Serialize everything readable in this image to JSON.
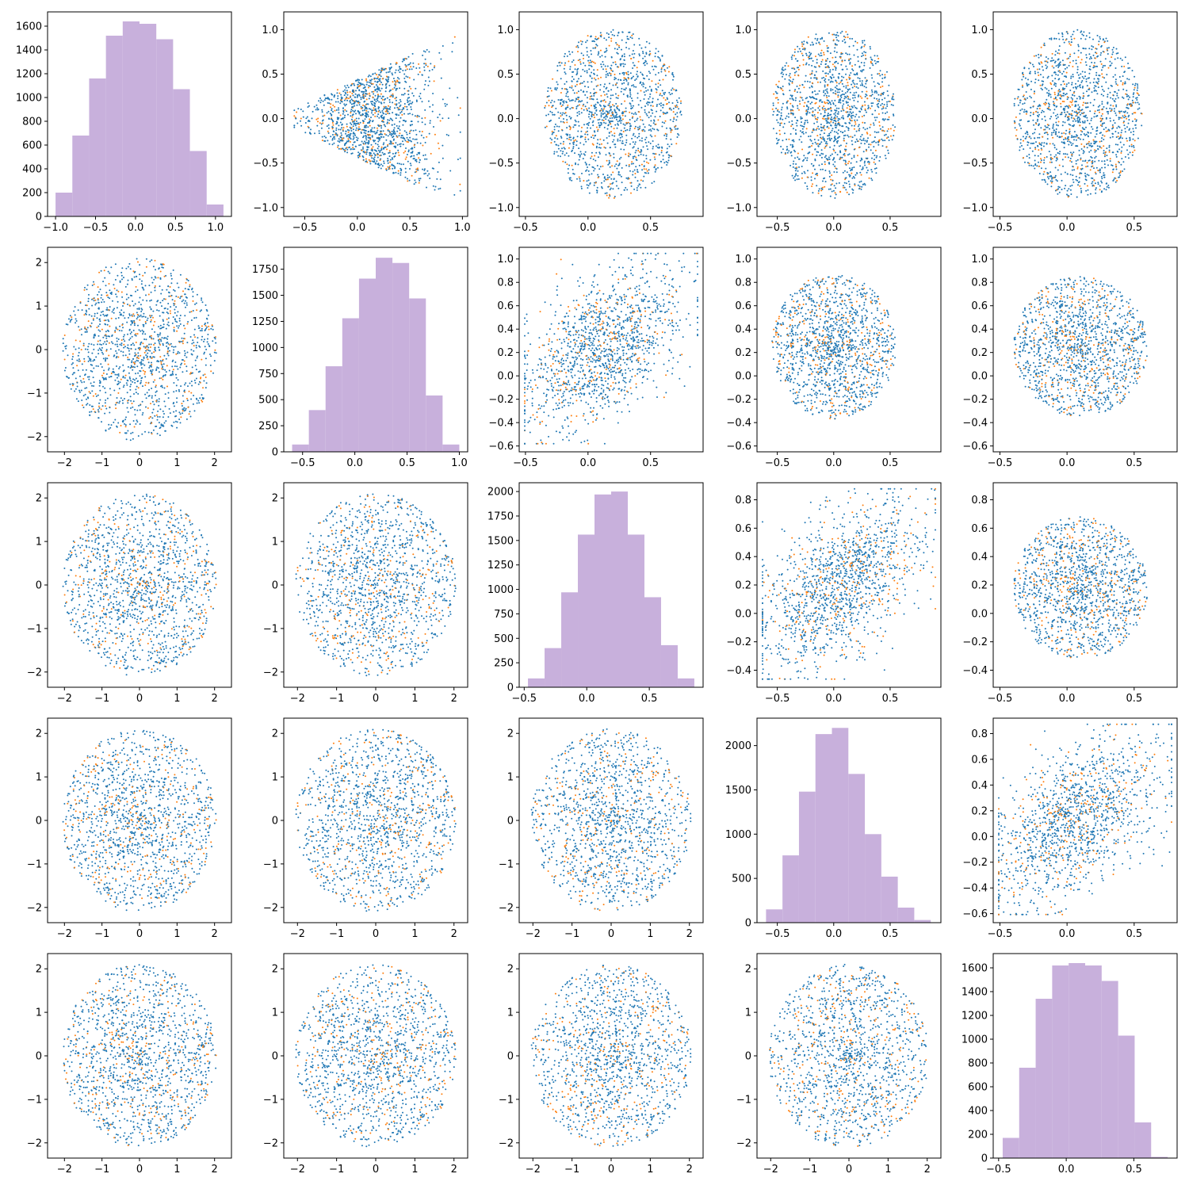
{
  "figure": {
    "rows": 5,
    "cols": 5,
    "points_per_panel": 1400,
    "colors": {
      "scatter_primary": "#1f77b4",
      "scatter_secondary": "#ff7f0e",
      "histogram": "#c8b0dc"
    }
  },
  "chart_data": [
    {
      "row": 0,
      "col": 0,
      "type": "bar",
      "subtype": "histogram",
      "bin_edges": [
        -1.0,
        -0.79,
        -0.58,
        -0.37,
        -0.16,
        0.05,
        0.26,
        0.47,
        0.68,
        0.89,
        1.1
      ],
      "values": [
        200,
        680,
        1160,
        1520,
        1640,
        1620,
        1490,
        1070,
        550,
        100
      ],
      "xlim": [
        -1.1,
        1.2
      ],
      "ylim": [
        0,
        1720
      ],
      "xticks": [
        -1.0,
        -0.5,
        0.0,
        0.5,
        1.0
      ],
      "xtick_labels": [
        "−1.0",
        "−0.5",
        "0.0",
        "0.5",
        "1.0"
      ],
      "yticks": [
        0,
        200,
        400,
        600,
        800,
        1000,
        1200,
        1400,
        1600
      ],
      "ytick_labels": [
        "0",
        "200",
        "400",
        "600",
        "800",
        "1000",
        "1200",
        "1400",
        "1600"
      ]
    },
    {
      "row": 0,
      "col": 1,
      "type": "scatter",
      "shape": "fan",
      "xlim": [
        -0.7,
        1.05
      ],
      "ylim": [
        -1.1,
        1.2
      ],
      "xticks": [
        -0.5,
        0.0,
        0.5,
        1.0
      ],
      "xtick_labels": [
        "−0.5",
        "0.0",
        "0.5",
        "1.0"
      ],
      "yticks": [
        -1.0,
        -0.5,
        0.0,
        0.5,
        1.0
      ],
      "ytick_labels": [
        "−1.0",
        "−0.5",
        "0.0",
        "0.5",
        "1.0"
      ]
    },
    {
      "row": 0,
      "col": 2,
      "type": "scatter",
      "shape": "ellipse",
      "cx": 0.2,
      "cy": 0.05,
      "rx": 0.55,
      "ry": 0.95,
      "xlim": [
        -0.55,
        0.92
      ],
      "ylim": [
        -1.1,
        1.2
      ],
      "xticks": [
        -0.5,
        0.0,
        0.5
      ],
      "xtick_labels": [
        "−0.5",
        "0.0",
        "0.5"
      ],
      "yticks": [
        -1.0,
        -0.5,
        0.0,
        0.5,
        1.0
      ],
      "ytick_labels": [
        "−1.0",
        "−0.5",
        "0.0",
        "0.5",
        "1.0"
      ]
    },
    {
      "row": 0,
      "col": 3,
      "type": "scatter",
      "shape": "ellipse",
      "cx": 0.0,
      "cy": 0.05,
      "rx": 0.55,
      "ry": 0.95,
      "xlim": [
        -0.68,
        0.95
      ],
      "ylim": [
        -1.1,
        1.2
      ],
      "xticks": [
        -0.5,
        0.0,
        0.5
      ],
      "xtick_labels": [
        "−0.5",
        "0.0",
        "0.5"
      ],
      "yticks": [
        -1.0,
        -0.5,
        0.0,
        0.5,
        1.0
      ],
      "ytick_labels": [
        "−1.0",
        "−0.5",
        "0.0",
        "0.5",
        "1.0"
      ]
    },
    {
      "row": 0,
      "col": 4,
      "type": "scatter",
      "shape": "ellipse",
      "cx": 0.08,
      "cy": 0.05,
      "rx": 0.48,
      "ry": 0.95,
      "xlim": [
        -0.55,
        0.82
      ],
      "ylim": [
        -1.1,
        1.2
      ],
      "xticks": [
        -0.5,
        0.0,
        0.5
      ],
      "xtick_labels": [
        "−0.5",
        "0.0",
        "0.5"
      ],
      "yticks": [
        -1.0,
        -0.5,
        0.0,
        0.5,
        1.0
      ],
      "ytick_labels": [
        "−1.0",
        "−0.5",
        "0.0",
        "0.5",
        "1.0"
      ]
    },
    {
      "row": 1,
      "col": 0,
      "type": "scatter",
      "shape": "disc",
      "cx": 0.0,
      "cy": 0.0,
      "rx": 2.05,
      "ry": 2.1,
      "xlim": [
        -2.45,
        2.45
      ],
      "ylim": [
        -2.35,
        2.35
      ],
      "xticks": [
        -2,
        -1,
        0,
        1,
        2
      ],
      "xtick_labels": [
        "−2",
        "−1",
        "0",
        "1",
        "2"
      ],
      "yticks": [
        -2,
        -1,
        0,
        1,
        2
      ],
      "ytick_labels": [
        "−2",
        "−1",
        "0",
        "1",
        "2"
      ]
    },
    {
      "row": 1,
      "col": 1,
      "type": "bar",
      "subtype": "histogram",
      "bin_edges": [
        -0.6,
        -0.44,
        -0.28,
        -0.12,
        0.04,
        0.2,
        0.36,
        0.52,
        0.68,
        0.84,
        1.0
      ],
      "values": [
        70,
        400,
        820,
        1280,
        1660,
        1860,
        1810,
        1470,
        540,
        70
      ],
      "xlim": [
        -0.68,
        1.08
      ],
      "ylim": [
        0,
        1960
      ],
      "xticks": [
        -0.5,
        0.0,
        0.5,
        1.0
      ],
      "xtick_labels": [
        "−0.5",
        "0.0",
        "0.5",
        "1.0"
      ],
      "yticks": [
        0,
        250,
        500,
        750,
        1000,
        1250,
        1500,
        1750
      ],
      "ytick_labels": [
        "0",
        "250",
        "500",
        "750",
        "1000",
        "1250",
        "1500",
        "1750"
      ]
    },
    {
      "row": 1,
      "col": 2,
      "type": "scatter",
      "shape": "tilted",
      "xlim": [
        -0.55,
        0.92
      ],
      "ylim": [
        -0.65,
        1.1
      ],
      "xticks": [
        -0.5,
        0.0,
        0.5
      ],
      "xtick_labels": [
        "−0.5",
        "0.0",
        "0.5"
      ],
      "yticks": [
        -0.6,
        -0.4,
        -0.2,
        0.0,
        0.2,
        0.4,
        0.6,
        0.8,
        1.0
      ],
      "ytick_labels": [
        "−0.6",
        "−0.4",
        "−0.2",
        "0.0",
        "0.2",
        "0.4",
        "0.6",
        "0.8",
        "1.0"
      ]
    },
    {
      "row": 1,
      "col": 3,
      "type": "scatter",
      "shape": "ellipse",
      "cx": 0.0,
      "cy": 0.25,
      "rx": 0.55,
      "ry": 0.62,
      "xlim": [
        -0.68,
        0.95
      ],
      "ylim": [
        -0.65,
        1.1
      ],
      "xticks": [
        -0.5,
        0.0,
        0.5
      ],
      "xtick_labels": [
        "−0.5",
        "0.0",
        "0.5"
      ],
      "yticks": [
        -0.6,
        -0.4,
        -0.2,
        0.0,
        0.2,
        0.4,
        0.6,
        0.8,
        1.0
      ],
      "ytick_labels": [
        "−0.6",
        "−0.4",
        "−0.2",
        "0.0",
        "0.2",
        "0.4",
        "0.6",
        "0.8",
        "1.0"
      ]
    },
    {
      "row": 1,
      "col": 4,
      "type": "scatter",
      "shape": "ellipse",
      "cx": 0.1,
      "cy": 0.25,
      "rx": 0.5,
      "ry": 0.6,
      "xlim": [
        -0.55,
        0.82
      ],
      "ylim": [
        -0.65,
        1.1
      ],
      "xticks": [
        -0.5,
        0.0,
        0.5
      ],
      "xtick_labels": [
        "−0.5",
        "0.0",
        "0.5"
      ],
      "yticks": [
        -0.6,
        -0.4,
        -0.2,
        0.0,
        0.2,
        0.4,
        0.6,
        0.8,
        1.0
      ],
      "ytick_labels": [
        "−0.6",
        "−0.4",
        "−0.2",
        "0.0",
        "0.2",
        "0.4",
        "0.6",
        "0.8",
        "1.0"
      ]
    },
    {
      "row": 2,
      "col": 0,
      "type": "scatter",
      "shape": "disc",
      "cx": 0.0,
      "cy": 0.0,
      "rx": 2.05,
      "ry": 2.1,
      "xlim": [
        -2.45,
        2.45
      ],
      "ylim": [
        -2.35,
        2.35
      ],
      "xticks": [
        -2,
        -1,
        0,
        1,
        2
      ],
      "xtick_labels": [
        "−2",
        "−1",
        "0",
        "1",
        "2"
      ],
      "yticks": [
        -2,
        -1,
        0,
        1,
        2
      ],
      "ytick_labels": [
        "−2",
        "−1",
        "0",
        "1",
        "2"
      ]
    },
    {
      "row": 2,
      "col": 1,
      "type": "scatter",
      "shape": "disc",
      "cx": 0.0,
      "cy": 0.0,
      "rx": 2.05,
      "ry": 2.1,
      "xlim": [
        -2.35,
        2.35
      ],
      "ylim": [
        -2.35,
        2.35
      ],
      "xticks": [
        -2,
        -1,
        0,
        1,
        2
      ],
      "xtick_labels": [
        "−2",
        "−1",
        "0",
        "1",
        "2"
      ],
      "yticks": [
        -2,
        -1,
        0,
        1,
        2
      ],
      "ytick_labels": [
        "−2",
        "−1",
        "0",
        "1",
        "2"
      ]
    },
    {
      "row": 2,
      "col": 2,
      "type": "bar",
      "subtype": "histogram",
      "bin_edges": [
        -0.47,
        -0.337,
        -0.204,
        -0.071,
        0.062,
        0.195,
        0.328,
        0.461,
        0.594,
        0.727,
        0.86
      ],
      "values": [
        90,
        400,
        970,
        1560,
        1970,
        2000,
        1560,
        920,
        430,
        90
      ],
      "xlim": [
        -0.54,
        0.93
      ],
      "ylim": [
        0,
        2090
      ],
      "xticks": [
        -0.5,
        0.0,
        0.5
      ],
      "xtick_labels": [
        "−0.5",
        "0.0",
        "0.5"
      ],
      "yticks": [
        0,
        250,
        500,
        750,
        1000,
        1250,
        1500,
        1750,
        2000
      ],
      "ytick_labels": [
        "0",
        "250",
        "500",
        "750",
        "1000",
        "1250",
        "1500",
        "1750",
        "2000"
      ]
    },
    {
      "row": 2,
      "col": 3,
      "type": "scatter",
      "shape": "tilted",
      "xlim": [
        -0.68,
        0.95
      ],
      "ylim": [
        -0.52,
        0.92
      ],
      "xticks": [
        -0.5,
        0.0,
        0.5
      ],
      "xtick_labels": [
        "−0.5",
        "0.0",
        "0.5"
      ],
      "yticks": [
        -0.4,
        -0.2,
        0.0,
        0.2,
        0.4,
        0.6,
        0.8
      ],
      "ytick_labels": [
        "−0.4",
        "−0.2",
        "0.0",
        "0.2",
        "0.4",
        "0.6",
        "0.8"
      ]
    },
    {
      "row": 2,
      "col": 4,
      "type": "scatter",
      "shape": "ellipse",
      "cx": 0.1,
      "cy": 0.18,
      "rx": 0.5,
      "ry": 0.5,
      "xlim": [
        -0.55,
        0.82
      ],
      "ylim": [
        -0.52,
        0.92
      ],
      "xticks": [
        -0.5,
        0.0,
        0.5
      ],
      "xtick_labels": [
        "−0.5",
        "0.0",
        "0.5"
      ],
      "yticks": [
        -0.4,
        -0.2,
        0.0,
        0.2,
        0.4,
        0.6,
        0.8
      ],
      "ytick_labels": [
        "−0.4",
        "−0.2",
        "0.0",
        "0.2",
        "0.4",
        "0.6",
        "0.8"
      ]
    },
    {
      "row": 3,
      "col": 0,
      "type": "scatter",
      "shape": "disc",
      "cx": 0.0,
      "cy": 0.0,
      "rx": 2.05,
      "ry": 2.1,
      "xlim": [
        -2.45,
        2.45
      ],
      "ylim": [
        -2.35,
        2.35
      ],
      "xticks": [
        -2,
        -1,
        0,
        1,
        2
      ],
      "xtick_labels": [
        "−2",
        "−1",
        "0",
        "1",
        "2"
      ],
      "yticks": [
        -2,
        -1,
        0,
        1,
        2
      ],
      "ytick_labels": [
        "−2",
        "−1",
        "0",
        "1",
        "2"
      ]
    },
    {
      "row": 3,
      "col": 1,
      "type": "scatter",
      "shape": "disc",
      "cx": 0.0,
      "cy": 0.0,
      "rx": 2.05,
      "ry": 2.1,
      "xlim": [
        -2.35,
        2.35
      ],
      "ylim": [
        -2.35,
        2.35
      ],
      "xticks": [
        -2,
        -1,
        0,
        1,
        2
      ],
      "xtick_labels": [
        "−2",
        "−1",
        "0",
        "1",
        "2"
      ],
      "yticks": [
        -2,
        -1,
        0,
        1,
        2
      ],
      "ytick_labels": [
        "−2",
        "−1",
        "0",
        "1",
        "2"
      ]
    },
    {
      "row": 3,
      "col": 2,
      "type": "scatter",
      "shape": "disc",
      "cx": 0.0,
      "cy": 0.0,
      "rx": 2.05,
      "ry": 2.1,
      "xlim": [
        -2.35,
        2.35
      ],
      "ylim": [
        -2.35,
        2.35
      ],
      "xticks": [
        -2,
        -1,
        0,
        1,
        2
      ],
      "xtick_labels": [
        "−2",
        "−1",
        "0",
        "1",
        "2"
      ],
      "yticks": [
        -2,
        -1,
        0,
        1,
        2
      ],
      "ytick_labels": [
        "−2",
        "−1",
        "0",
        "1",
        "2"
      ]
    },
    {
      "row": 3,
      "col": 3,
      "type": "bar",
      "subtype": "histogram",
      "bin_edges": [
        -0.6,
        -0.454,
        -0.308,
        -0.162,
        -0.016,
        0.13,
        0.276,
        0.422,
        0.568,
        0.714,
        0.86
      ],
      "values": [
        150,
        760,
        1480,
        2130,
        2200,
        1680,
        1000,
        520,
        170,
        30
      ],
      "xlim": [
        -0.68,
        0.95
      ],
      "ylim": [
        0,
        2310
      ],
      "xticks": [
        -0.5,
        0.0,
        0.5
      ],
      "xtick_labels": [
        "−0.5",
        "0.0",
        "0.5"
      ],
      "yticks": [
        0,
        500,
        1000,
        1500,
        2000
      ],
      "ytick_labels": [
        "0",
        "500",
        "1000",
        "1500",
        "2000"
      ]
    },
    {
      "row": 3,
      "col": 4,
      "type": "scatter",
      "shape": "tilted",
      "xlim": [
        -0.55,
        0.82
      ],
      "ylim": [
        -0.67,
        0.92
      ],
      "xticks": [
        -0.5,
        0.0,
        0.5
      ],
      "xtick_labels": [
        "−0.5",
        "0.0",
        "0.5"
      ],
      "yticks": [
        -0.6,
        -0.4,
        -0.2,
        0.0,
        0.2,
        0.4,
        0.6,
        0.8
      ],
      "ytick_labels": [
        "−0.6",
        "−0.4",
        "−0.2",
        "0.0",
        "0.2",
        "0.4",
        "0.6",
        "0.8"
      ]
    },
    {
      "row": 4,
      "col": 0,
      "type": "scatter",
      "shape": "disc",
      "cx": 0.0,
      "cy": 0.0,
      "rx": 2.05,
      "ry": 2.1,
      "xlim": [
        -2.45,
        2.45
      ],
      "ylim": [
        -2.35,
        2.35
      ],
      "xticks": [
        -2,
        -1,
        0,
        1,
        2
      ],
      "xtick_labels": [
        "−2",
        "−1",
        "0",
        "1",
        "2"
      ],
      "yticks": [
        -2,
        -1,
        0,
        1,
        2
      ],
      "ytick_labels": [
        "−2",
        "−1",
        "0",
        "1",
        "2"
      ]
    },
    {
      "row": 4,
      "col": 1,
      "type": "scatter",
      "shape": "disc",
      "cx": 0.0,
      "cy": 0.0,
      "rx": 2.05,
      "ry": 2.1,
      "xlim": [
        -2.35,
        2.35
      ],
      "ylim": [
        -2.35,
        2.35
      ],
      "xticks": [
        -2,
        -1,
        0,
        1,
        2
      ],
      "xtick_labels": [
        "−2",
        "−1",
        "0",
        "1",
        "2"
      ],
      "yticks": [
        -2,
        -1,
        0,
        1,
        2
      ],
      "ytick_labels": [
        "−2",
        "−1",
        "0",
        "1",
        "2"
      ]
    },
    {
      "row": 4,
      "col": 2,
      "type": "scatter",
      "shape": "disc",
      "cx": 0.0,
      "cy": 0.0,
      "rx": 2.05,
      "ry": 2.1,
      "xlim": [
        -2.35,
        2.35
      ],
      "ylim": [
        -2.35,
        2.35
      ],
      "xticks": [
        -2,
        -1,
        0,
        1,
        2
      ],
      "xtick_labels": [
        "−2",
        "−1",
        "0",
        "1",
        "2"
      ],
      "yticks": [
        -2,
        -1,
        0,
        1,
        2
      ],
      "ytick_labels": [
        "−2",
        "−1",
        "0",
        "1",
        "2"
      ]
    },
    {
      "row": 4,
      "col": 3,
      "type": "scatter",
      "shape": "disc",
      "cx": 0.0,
      "cy": 0.0,
      "rx": 2.05,
      "ry": 2.1,
      "xlim": [
        -2.35,
        2.35
      ],
      "ylim": [
        -2.35,
        2.35
      ],
      "xticks": [
        -2,
        -1,
        0,
        1,
        2
      ],
      "xtick_labels": [
        "−2",
        "−1",
        "0",
        "1",
        "2"
      ],
      "yticks": [
        -2,
        -1,
        0,
        1,
        2
      ],
      "ytick_labels": [
        "−2",
        "−1",
        "0",
        "1",
        "2"
      ]
    },
    {
      "row": 4,
      "col": 4,
      "type": "bar",
      "subtype": "histogram",
      "bin_edges": [
        -0.47,
        -0.348,
        -0.226,
        -0.104,
        0.018,
        0.14,
        0.262,
        0.384,
        0.506,
        0.628,
        0.75
      ],
      "values": [
        170,
        760,
        1340,
        1620,
        1640,
        1620,
        1490,
        1030,
        300,
        10
      ],
      "xlim": [
        -0.54,
        0.82
      ],
      "ylim": [
        0,
        1720
      ],
      "xticks": [
        -0.5,
        0.0,
        0.5
      ],
      "xtick_labels": [
        "−0.5",
        "0.0",
        "0.5"
      ],
      "yticks": [
        0,
        200,
        400,
        600,
        800,
        1000,
        1200,
        1400,
        1600
      ],
      "ytick_labels": [
        "0",
        "200",
        "400",
        "600",
        "800",
        "1000",
        "1200",
        "1400",
        "1600"
      ]
    }
  ]
}
